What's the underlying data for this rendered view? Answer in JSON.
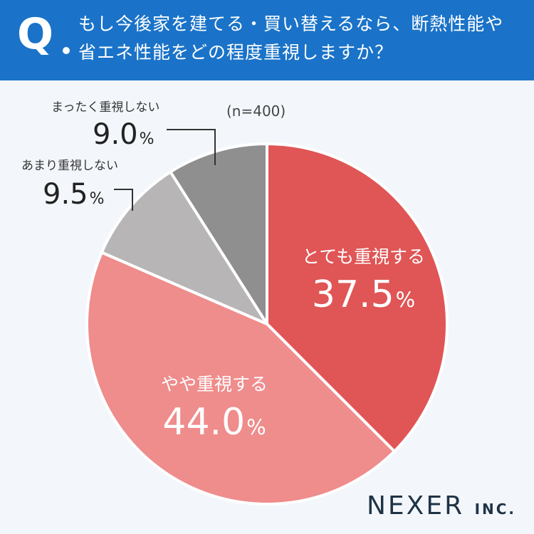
{
  "header": {
    "q_symbol": "Q",
    "question": "もし今後家を建てる・買い替えるなら、断熱性能や省エネ性能をどの程度重視しますか？"
  },
  "sample_size": "(n=400)",
  "brand": {
    "name": "NEXER",
    "suffix": "INC."
  },
  "colors": {
    "header_bg": "#1a73c8",
    "slice_very": "#e05555",
    "slice_some": "#ef8c8c",
    "slice_little": "#b7b5b6",
    "slice_none": "#8f8f8f"
  },
  "chart_data": {
    "type": "pie",
    "title": "もし今後家を建てる・買い替えるなら、断熱性能や省エネ性能をどの程度重視しますか？",
    "note": "(n=400)",
    "categories": [
      "とても重視する",
      "やや重視する",
      "あまり重視しない",
      "まったく重視しない"
    ],
    "values": [
      37.5,
      44.0,
      9.5,
      9.0
    ],
    "value_labels": [
      "37.5",
      "44.0",
      "9.5",
      "9.0"
    ],
    "unit": "%",
    "start_angle_deg": 0,
    "direction": "clockwise"
  }
}
